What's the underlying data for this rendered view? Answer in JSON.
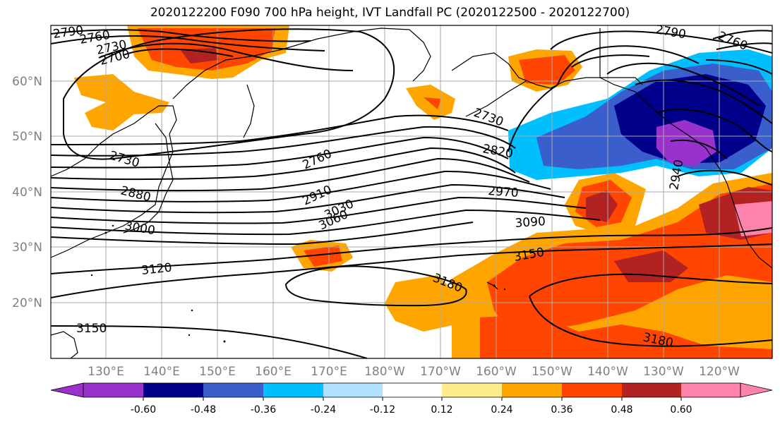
{
  "title": "2020122200 F090 700 hPa height, IVT Landfall PC (2020122500 - 2020122700)",
  "lat_labels": [
    "60°N",
    "50°N",
    "40°N",
    "30°N",
    "20°N"
  ],
  "lon_labels": [
    "130°E",
    "140°E",
    "150°E",
    "160°E",
    "170°E",
    "180°W",
    "170°W",
    "160°W",
    "150°W",
    "140°W",
    "130°W",
    "120°W"
  ],
  "colorbar": {
    "colors": [
      "#9932cc",
      "#00008b",
      "#3a5fcd",
      "#00bfff",
      "#b0e2ff",
      "#ffffff",
      "#ffffff",
      "#ffec8b",
      "#ffa500",
      "#ff4500",
      "#b22222",
      "#ff82ab"
    ],
    "tick_labels": [
      "-0.60",
      "-0.48",
      "-0.36",
      "-0.24",
      "-0.12",
      "0.12",
      "0.24",
      "0.36",
      "0.48",
      "0.60"
    ]
  },
  "contour_labels": [
    "2790",
    "2760",
    "2730",
    "2700",
    "2730",
    "2880",
    "3000",
    "3120",
    "3150",
    "2760",
    "2910",
    "3030",
    "3060",
    "2730",
    "2820",
    "2970",
    "3090",
    "3150",
    "3180",
    "3180",
    "2790",
    "2760",
    "2940"
  ]
}
